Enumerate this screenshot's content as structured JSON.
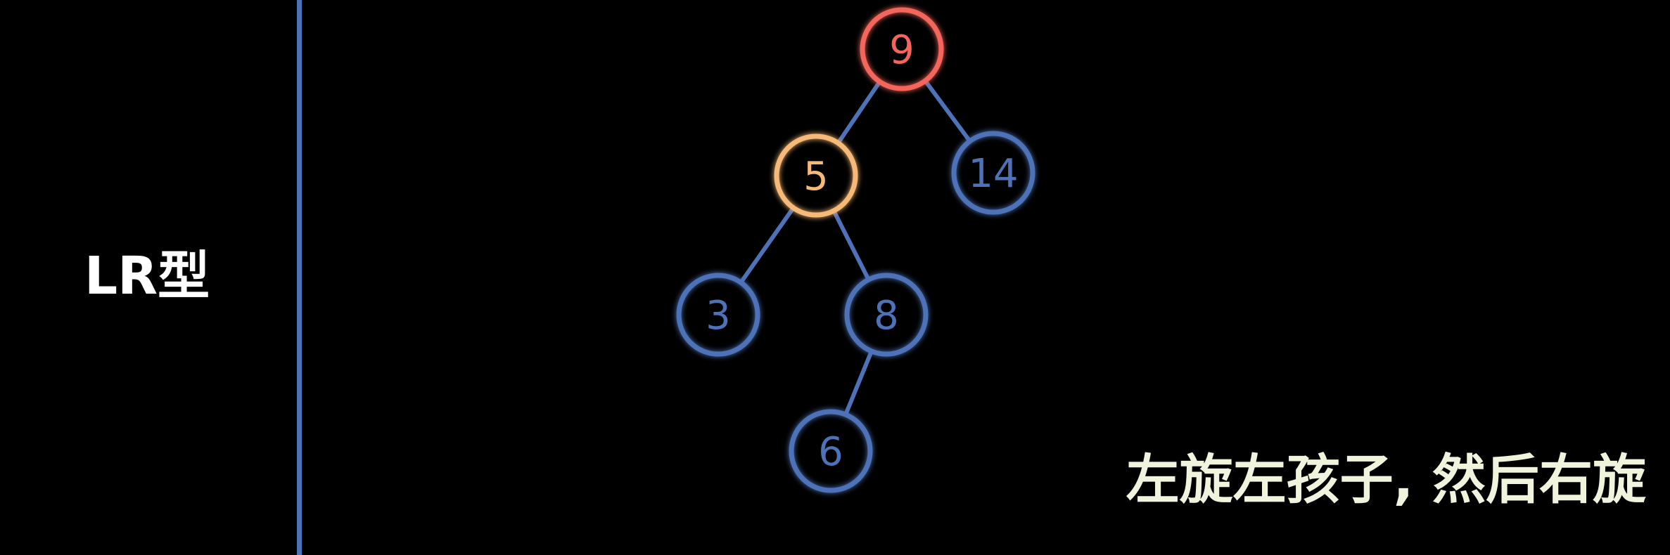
{
  "type_label": "LR型",
  "caption": "左旋左孩子, 然后右旋",
  "colors": {
    "background": "#000000",
    "divider": "#4e72b8",
    "default_node": "#4e72b8",
    "root_node": "#f4665b",
    "pivot_node": "#f7b977",
    "edge": "#4e72b8",
    "caption_text": "#f0f4dc",
    "label_text": "#ffffff"
  },
  "tree": {
    "nodes": [
      {
        "id": "9",
        "label": "9",
        "role": "root"
      },
      {
        "id": "5",
        "label": "5",
        "role": "pivot"
      },
      {
        "id": "14",
        "label": "14",
        "role": "default"
      },
      {
        "id": "3",
        "label": "3",
        "role": "default"
      },
      {
        "id": "8",
        "label": "8",
        "role": "default"
      },
      {
        "id": "6",
        "label": "6",
        "role": "default"
      }
    ],
    "edges": [
      {
        "from": "9",
        "to": "5"
      },
      {
        "from": "9",
        "to": "14"
      },
      {
        "from": "5",
        "to": "3"
      },
      {
        "from": "5",
        "to": "8"
      },
      {
        "from": "8",
        "to": "6"
      }
    ]
  }
}
